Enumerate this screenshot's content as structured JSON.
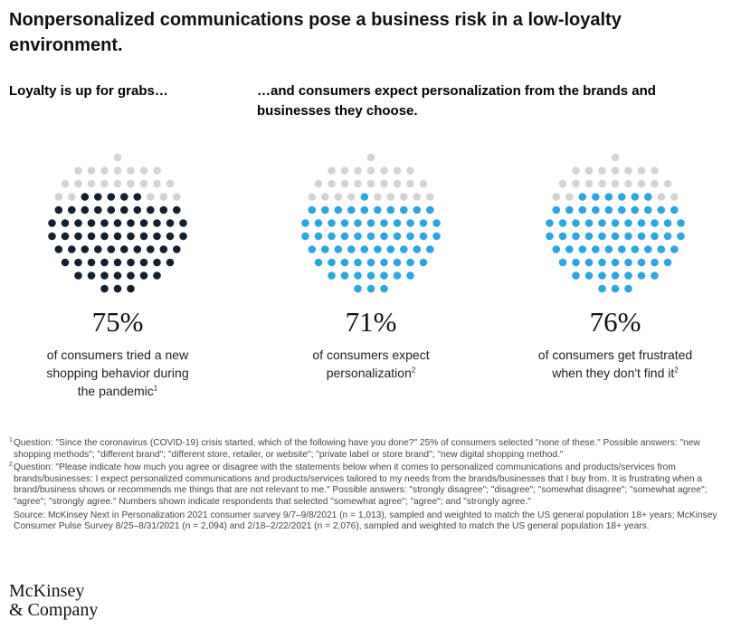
{
  "title": "Nonpersonalized communications pose a business risk in a low-loyalty environment.",
  "subtitle_left": "Loyalty is up for grabs…",
  "subtitle_right": "…and consumers expect personalization from the brands and businesses they choose.",
  "colors": {
    "gray": "#d3d3d3",
    "navy": "#14202e",
    "blue": "#2aa6e0"
  },
  "chart_data": [
    {
      "type": "dot-matrix",
      "value": 75,
      "unit": "%",
      "value_label": "75%",
      "fill_color": "#14202e",
      "description_lines": [
        "of consumers tried a new",
        "shopping behavior during",
        "the pandemic"
      ],
      "footnote_ref": "1"
    },
    {
      "type": "dot-matrix",
      "value": 71,
      "unit": "%",
      "value_label": "71%",
      "fill_color": "#2aa6e0",
      "description_lines": [
        "of consumers expect",
        "personalization"
      ],
      "footnote_ref": "2"
    },
    {
      "type": "dot-matrix",
      "value": 76,
      "unit": "%",
      "value_label": "76%",
      "fill_color": "#2aa6e0",
      "description_lines": [
        "of consumers get frustrated",
        "when they don't find it"
      ],
      "footnote_ref": "2"
    }
  ],
  "footnotes": {
    "n1_marker": "1",
    "n1_text": "Question: \"Since the coronavirus (COVID-19) crisis started, which of the following have you done?\" 25% of consumers selected \"none of these.\" Possible answers: \"new shopping methods\"; \"different brand\"; \"different store, retailer, or website\"; \"private label or store brand\"; \"new digital shopping method.\"",
    "n2_marker": "2",
    "n2_text": "Question: \"Please indicate how much you agree or disagree with the statements below when it comes to personalized communications and products/services from brands/businesses: I expect personalized communications and products/services tailored to my needs from the brands/businesses that I buy from. It is frustrating when a brand/business shows or recommends me things that are not relevant to me.\" Possible answers: \"strongly disagree\"; \"disagree\"; \"somewhat disagree\"; \"somewhat agree\"; \"agree\"; \"strongly agree.\" Numbers shown indicate respondents that selected \"somewhat agree\"; \"agree\"; and \"strongly agree.\"",
    "source": "Source: McKinsey Next in Personalization 2021 consumer survey 9/7–9/8/2021 (n = 1,013), sampled and weighted to match the US general population 18+ years; McKinsey Consumer Pulse Survey 8/25–8/31/2021 (n = 2,094) and 2/18–2/22/2021 (n = 2,076), sampled and weighted to match the US general population 18+ years."
  },
  "logo": {
    "line1": "McKinsey",
    "line2": "& Company"
  }
}
